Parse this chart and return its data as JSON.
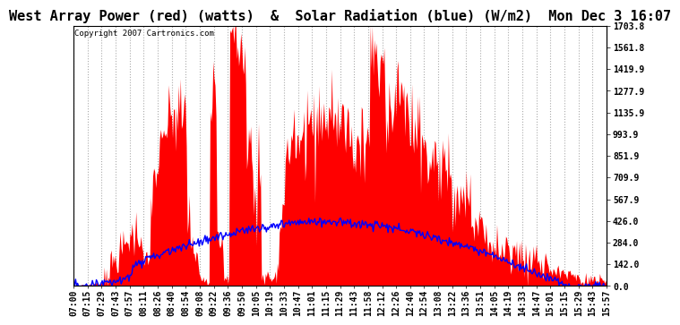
{
  "title": "West Array Power (red) (watts)  &  Solar Radiation (blue) (W/m2)  Mon Dec 3 16:07",
  "copyright": "Copyright 2007 Cartronics.com",
  "background_color": "#ffffff",
  "plot_bg_color": "#ffffff",
  "grid_color": "#aaaaaa",
  "red_color": "#ff0000",
  "blue_color": "#0000ff",
  "ymin": 0.0,
  "ymax": 1703.8,
  "yticks": [
    0.0,
    142.0,
    284.0,
    426.0,
    567.9,
    709.9,
    851.9,
    993.9,
    1135.9,
    1277.9,
    1419.9,
    1561.8,
    1703.8
  ],
  "title_fontsize": 11,
  "copyright_fontsize": 6.5,
  "tick_fontsize": 7,
  "title_font": "monospace",
  "tick_font": "monospace",
  "xtick_labels": [
    "07:00",
    "07:15",
    "07:29",
    "07:43",
    "07:57",
    "08:11",
    "08:26",
    "08:40",
    "08:54",
    "09:08",
    "09:22",
    "09:36",
    "09:50",
    "10:05",
    "10:19",
    "10:33",
    "10:47",
    "11:01",
    "11:15",
    "11:29",
    "11:43",
    "11:58",
    "12:12",
    "12:26",
    "12:40",
    "12:54",
    "13:08",
    "13:22",
    "13:36",
    "13:51",
    "14:05",
    "14:19",
    "14:33",
    "14:47",
    "15:01",
    "15:15",
    "15:29",
    "15:43",
    "15:57"
  ]
}
